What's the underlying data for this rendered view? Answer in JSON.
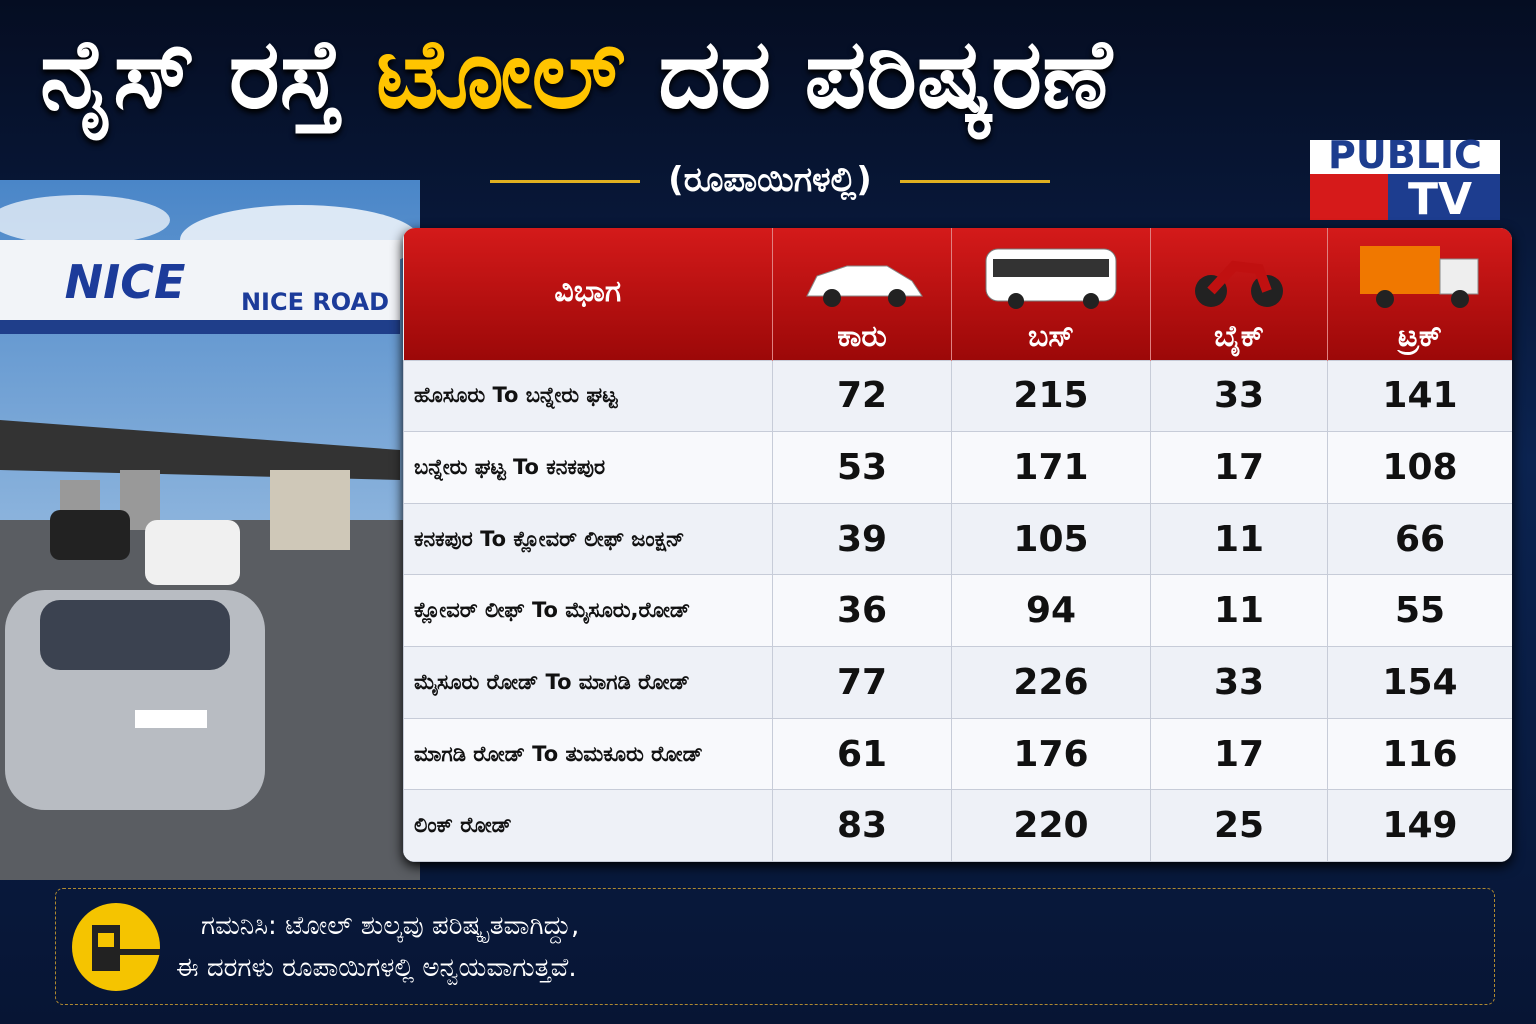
{
  "header": {
    "title_part1": "ನೈಸ್ ರಸ್ತೆ",
    "title_part2": "ಟೋಲ್",
    "title_part3": "ದರ ಪರಿಷ್ಕರಣೆ",
    "subtitle": "(ರೂಪಾಯಿಗಳಲ್ಲಿ)"
  },
  "logo": {
    "line1": "PUBLIC",
    "line2": "TV"
  },
  "photo": {
    "sign": "NICE",
    "sign_road": "NICE ROAD"
  },
  "table": {
    "columns": [
      "ವಿಭಾಗ",
      "ಕಾರು",
      "ಬಸ್",
      "ಬೈಕ್",
      "ಟ್ರಕ್"
    ],
    "rows": [
      [
        "ಹೊಸೂರು To ಬನ್ನೇರು ಘಟ್ಟ",
        72,
        215,
        33,
        141
      ],
      [
        "ಬನ್ನೇರು ಘಟ್ಟ To ಕನಕಪುರ",
        53,
        171,
        17,
        108
      ],
      [
        "ಕನಕಪುರ To ಕ್ಲೋವರ್ ಲೀಫ್ ಜಂಕ್ಷನ್",
        39,
        105,
        11,
        66
      ],
      [
        "ಕ್ಲೋವರ್ ಲೀಫ್ To ಮೈಸೂರು,ರೋಡ್",
        36,
        94,
        11,
        55
      ],
      [
        "ಮೈಸೂರು ರೋಡ್ To ಮಾಗಡಿ ರೋಡ್",
        77,
        226,
        33,
        154
      ],
      [
        "ಮಾಗಡಿ ರೋಡ್ To ತುಮಕೂರು ರೋಡ್",
        61,
        176,
        17,
        116
      ],
      [
        "ಲಿಂಕ್ ರೋಡ್",
        83,
        220,
        25,
        149
      ]
    ]
  },
  "note": {
    "line1": "ಗಮನಿಸಿ: ಟೋಲ್ ಶುಲ್ಕವು ಪರಿಷ್ಕೃತವಾಗಿದ್ದು,",
    "line2": "ಈ ದರಗಳು ರೂಪಾಯಿಗಳಲ್ಲಿ ಅನ್ವಯವಾಗುತ್ತವೆ."
  }
}
